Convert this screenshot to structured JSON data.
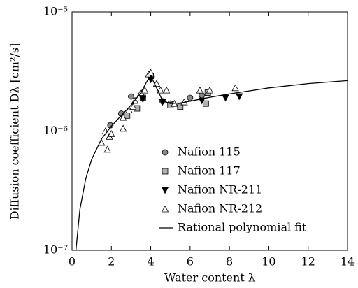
{
  "chart_data": {
    "type": "scatter",
    "xlabel": "Water content λ",
    "ylabel": "Diffusion coefficient Dλ [cm²/s]",
    "xlim": [
      0,
      14
    ],
    "xticks": [
      0,
      2,
      4,
      6,
      8,
      10,
      12,
      14
    ],
    "ylim": [
      1e-07,
      1e-05
    ],
    "log_y": true,
    "yticks": [
      {
        "value": 1e-07,
        "label": "10⁻⁷"
      },
      {
        "value": 1e-06,
        "label": "10⁻⁶"
      },
      {
        "value": 1e-05,
        "label": "10⁻⁵"
      }
    ],
    "legend": "lower right",
    "series": [
      {
        "name": "Nafion 115",
        "marker": "circle",
        "color": "#888888",
        "x": [
          1.95,
          2.5,
          3.0,
          4.6,
          5.0,
          6.0,
          6.6
        ],
        "values": [
          1.12e-06,
          1.4e-06,
          1.95e-06,
          1.78e-06,
          1.7e-06,
          1.9e-06,
          2e-06
        ]
      },
      {
        "name": "Nafion 117",
        "marker": "square",
        "color": "#b0b0b0",
        "x": [
          2.8,
          3.3,
          3.6,
          4.0,
          5.0,
          5.5,
          6.8,
          6.9
        ],
        "values": [
          1.35e-06,
          1.55e-06,
          1.9e-06,
          2.9e-06,
          1.65e-06,
          1.6e-06,
          1.7e-06,
          2.1e-06
        ]
      },
      {
        "name": "Nafion NR-211",
        "marker": "triangle-down",
        "color": "#000000",
        "x": [
          3.6,
          4.0,
          4.6,
          6.6,
          7.8,
          8.5
        ],
        "values": [
          1.85e-06,
          2.7e-06,
          1.75e-06,
          1.8e-06,
          1.9e-06,
          1.95e-06
        ]
      },
      {
        "name": "Nafion NR-212",
        "marker": "triangle-up",
        "color": "#ffffff",
        "x": [
          1.5,
          1.7,
          1.8,
          1.9,
          2.0,
          2.6,
          2.6,
          2.9,
          3.1,
          3.2,
          3.5,
          3.7,
          3.9,
          4.0,
          4.3,
          4.5,
          4.8,
          5.2,
          5.7,
          6.5,
          7.0,
          8.3
        ],
        "values": [
          8e-07,
          1e-06,
          7e-07,
          9e-07,
          9.5e-07,
          1.05e-06,
          1.3e-06,
          1.5e-06,
          1.6e-06,
          1.8e-06,
          2.1e-06,
          2.2e-06,
          3e-06,
          3.1e-06,
          2.5e-06,
          2.2e-06,
          2.2e-06,
          1.7e-06,
          1.75e-06,
          2.2e-06,
          2.2e-06,
          2.3e-06
        ]
      },
      {
        "name": "Rational polynomial fit",
        "marker": "line",
        "color": "#000000",
        "x": [
          0.2,
          0.4,
          0.7,
          1,
          1.5,
          2,
          2.5,
          3,
          3.5,
          3.8,
          4,
          4.3,
          4.6,
          5,
          5.5,
          6,
          7,
          8,
          10,
          12,
          14
        ],
        "values": [
          1e-07,
          2.2e-07,
          4e-07,
          5.8e-07,
          8.6e-07,
          1.1e-06,
          1.35e-06,
          1.65e-06,
          2.1e-06,
          2.6e-06,
          2.9e-06,
          2.3e-06,
          1.8e-06,
          1.7e-06,
          1.72e-06,
          1.78e-06,
          1.92e-06,
          2.05e-06,
          2.3e-06,
          2.5e-06,
          2.65e-06
        ]
      }
    ]
  }
}
